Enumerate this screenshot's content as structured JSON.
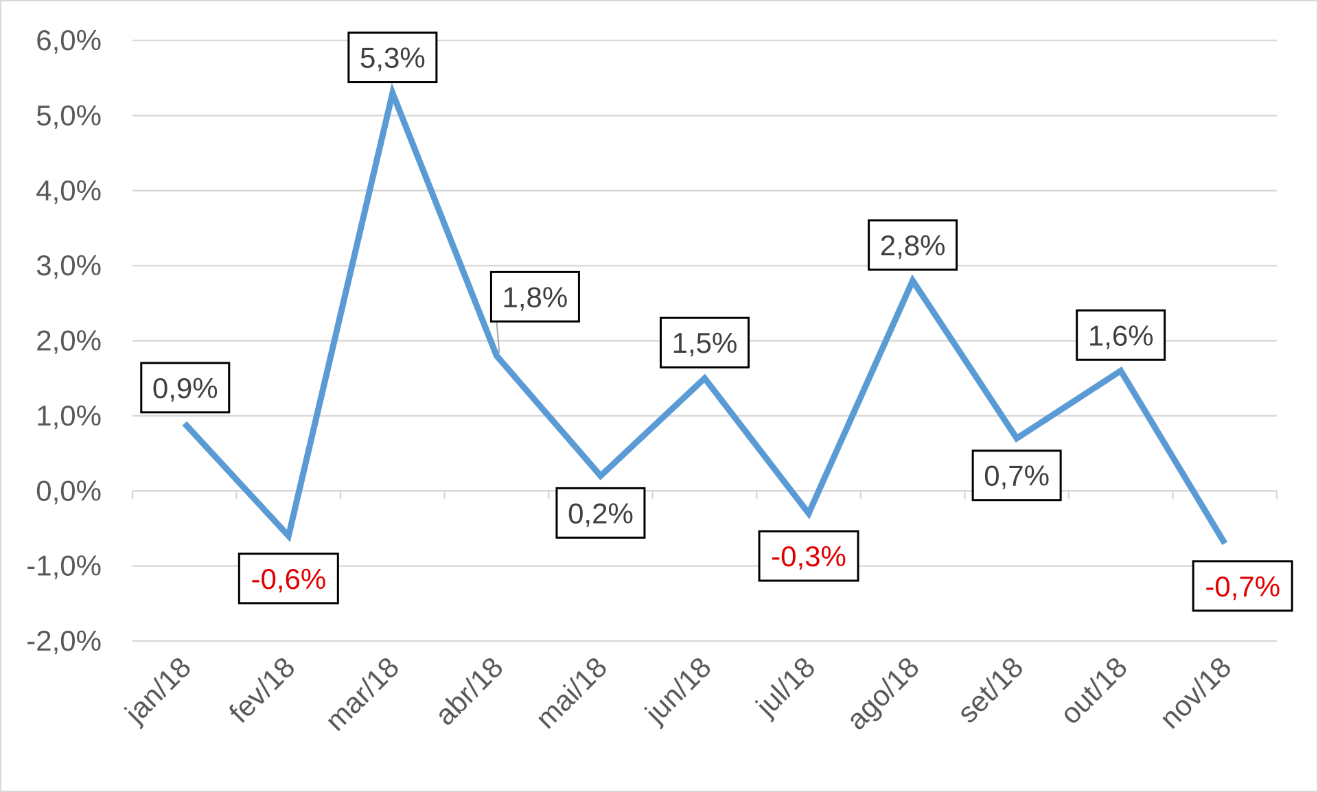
{
  "chart_data": {
    "type": "line",
    "title": "",
    "xlabel": "",
    "ylabel": "",
    "categories": [
      "jan/18",
      "fev/18",
      "mar/18",
      "abr/18",
      "mai/18",
      "jun/18",
      "jul/18",
      "ago/18",
      "set/18",
      "out/18",
      "nov/18"
    ],
    "series": [
      {
        "values": [
          0.9,
          -0.6,
          5.3,
          1.8,
          0.2,
          1.5,
          -0.3,
          2.8,
          0.7,
          1.6,
          -0.7
        ],
        "labels": [
          "0,9%",
          "-0,6%",
          "5,3%",
          "1,8%",
          "0,2%",
          "1,5%",
          "-0,3%",
          "2,8%",
          "0,7%",
          "1,6%",
          "-0,7%"
        ]
      }
    ],
    "yticks": [
      "6,0%",
      "5,0%",
      "4,0%",
      "3,0%",
      "2,0%",
      "1,0%",
      "0,0%",
      "-1,0%",
      "-2,0%"
    ],
    "ytick_values": [
      6,
      5,
      4,
      3,
      2,
      1,
      0,
      -1,
      -2
    ],
    "ylim": [
      -2,
      6
    ],
    "grid": true,
    "legend": "none",
    "colors": {
      "line": "#5b9bd5",
      "grid": "#d9d9d9",
      "axis_text": "#595959",
      "positive_label": "#404040",
      "negative_label": "#e00000",
      "label_border": "#000000"
    }
  }
}
